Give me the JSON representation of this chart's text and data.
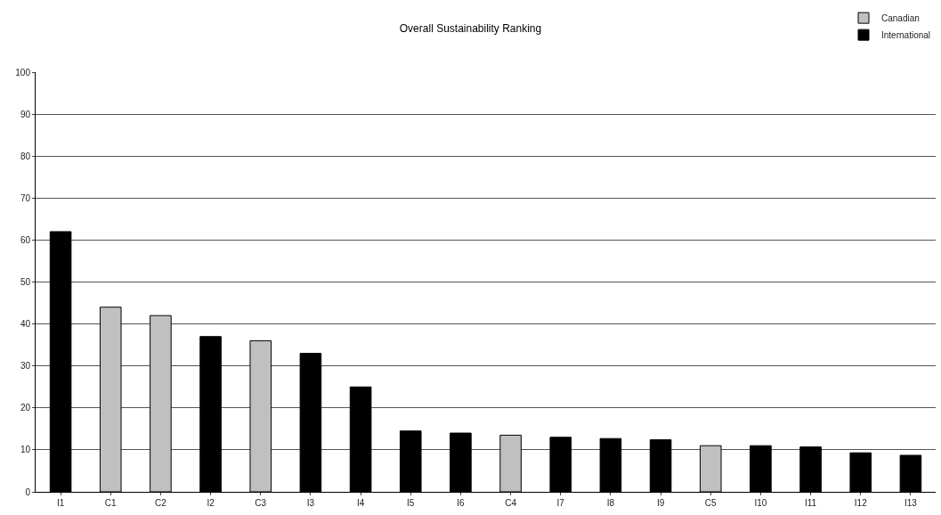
{
  "chart_data": {
    "type": "bar",
    "title": "Overall Sustainability Ranking",
    "categories": [
      "I1",
      "C1",
      "C2",
      "I2",
      "C3",
      "I3",
      "I4",
      "I5",
      "I6",
      "C4",
      "I7",
      "I8",
      "I9",
      "C5",
      "I10",
      "I11",
      "I12",
      "I13"
    ],
    "series": [
      {
        "name": "Canadian",
        "color": "#c0c0c0",
        "values": [
          null,
          44,
          42,
          null,
          36,
          null,
          null,
          null,
          null,
          13.5,
          null,
          null,
          null,
          11,
          null,
          null,
          null,
          null
        ]
      },
      {
        "name": "International",
        "color": "#000000",
        "values": [
          62,
          null,
          null,
          37,
          null,
          33,
          25,
          14.5,
          14,
          null,
          13,
          12.7,
          12.4,
          null,
          11,
          10.7,
          9.3,
          8.7
        ]
      }
    ],
    "ylim": [
      0,
      100
    ],
    "yticks": [
      0,
      10,
      20,
      30,
      40,
      50,
      60,
      70,
      80,
      90,
      100
    ],
    "grid": "y",
    "legend": "top right"
  }
}
